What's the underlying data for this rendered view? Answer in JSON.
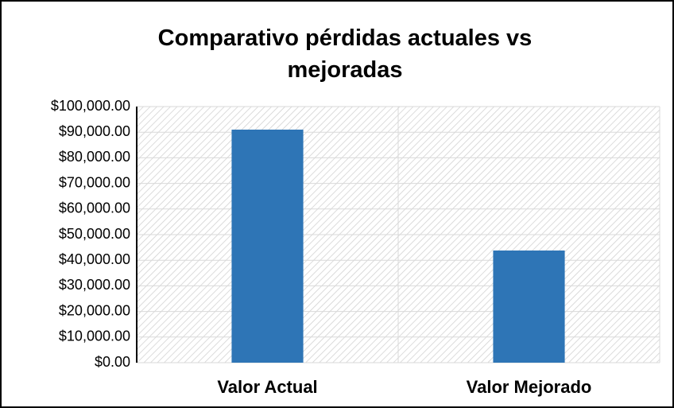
{
  "chart_data": {
    "type": "bar",
    "title": "Comparativo pérdidas actuales vs mejoradas",
    "categories": [
      "Valor Actual",
      "Valor Mejorado"
    ],
    "values": [
      91000,
      43800
    ],
    "color": "#2e75b6",
    "ylim": [
      0,
      100000
    ],
    "yticks": [
      {
        "value": 0,
        "label": "$0.00"
      },
      {
        "value": 10000,
        "label": "$10,000.00"
      },
      {
        "value": 20000,
        "label": "$20,000.00"
      },
      {
        "value": 30000,
        "label": "$30,000.00"
      },
      {
        "value": 40000,
        "label": "$40,000.00"
      },
      {
        "value": 50000,
        "label": "$50,000.00"
      },
      {
        "value": 60000,
        "label": "$60,000.00"
      },
      {
        "value": 70000,
        "label": "$70,000.00"
      },
      {
        "value": 80000,
        "label": "$80,000.00"
      },
      {
        "value": 90000,
        "label": "$90,000.00"
      },
      {
        "value": 100000,
        "label": "$100,000.00"
      }
    ],
    "grid": true
  }
}
